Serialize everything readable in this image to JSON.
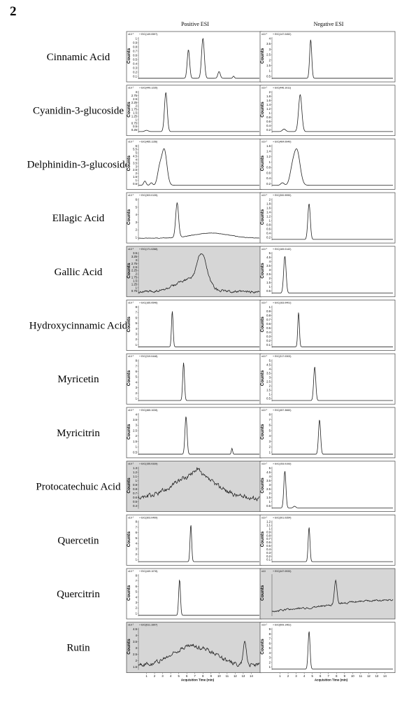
{
  "figure_number": "2",
  "columns": [
    "Positive ESI",
    "Negative ESI"
  ],
  "y_axis_label": "Counts",
  "scale_prefix": "x10",
  "x_axis_label": "Acquisition Time (min)",
  "x_ticks": [
    "1",
    "2",
    "3",
    "4",
    "5",
    "6",
    "7",
    "8",
    "9",
    "10",
    "11",
    "12",
    "13",
    "14"
  ],
  "colors": {
    "panel": "#ffffff",
    "shaded_panel": "#d6d6d6",
    "trace": "#222222"
  },
  "chart_data": [
    {
      "type": "line",
      "compound": "Cinnamic Acid",
      "mode": "Positive ESI",
      "ion": "EIC(149.0597)",
      "shaded": false,
      "yticks": [
        "1",
        "0.9",
        "0.8",
        "0.7",
        "0.6",
        "0.5",
        "0.4",
        "0.3",
        "0.2",
        "0.1"
      ],
      "peaks": [
        {
          "rt": 6.2,
          "h": 0.68,
          "w": 0.15
        },
        {
          "rt": 8.0,
          "h": 0.95,
          "w": 0.17
        },
        {
          "rt": 10.0,
          "h": 0.16,
          "w": 0.15
        },
        {
          "rt": 11.8,
          "h": 0.05,
          "w": 0.1
        }
      ],
      "baseline": 0.02,
      "noise": 0.0
    },
    {
      "type": "line",
      "compound": "Cinnamic Acid",
      "mode": "Negative ESI",
      "ion": "EIC(147.0452)",
      "shaded": false,
      "yticks": [
        "4",
        "3.5",
        "3",
        "2.5",
        "2",
        "1.5",
        "1",
        "0.5"
      ],
      "peaks": [
        {
          "rt": 4.8,
          "h": 0.92,
          "w": 0.13
        }
      ],
      "baseline": 0.02,
      "noise": 0.0
    },
    {
      "type": "line",
      "compound": "Cyanidin-3-glucoside",
      "mode": "Positive ESI",
      "ion": "EIC(449.1235)",
      "shaded": false,
      "yticks": [
        "3",
        "2.75",
        "2.5",
        "2.25",
        "2",
        "1.75",
        "1.5",
        "1.25",
        "1",
        "0.75",
        "0.5",
        "0.25"
      ],
      "peaks": [
        {
          "rt": 3.4,
          "h": 0.93,
          "w": 0.17
        },
        {
          "rt": 1.0,
          "h": 0.03,
          "w": 0.2
        }
      ],
      "baseline": 0.03,
      "noise": 0.0
    },
    {
      "type": "line",
      "compound": "Cyanidin-3-glucoside",
      "mode": "Negative ESI",
      "ion": "EIC(446.1011)",
      "shaded": false,
      "yticks": [
        "2",
        "1.8",
        "1.6",
        "1.4",
        "1.2",
        "1",
        "0.8",
        "0.6",
        "0.4",
        "0.2"
      ],
      "peaks": [
        {
          "rt": 3.5,
          "h": 0.88,
          "w": 0.2
        },
        {
          "rt": 1.5,
          "h": 0.06,
          "w": 0.2
        }
      ],
      "baseline": 0.03,
      "noise": 0.0
    },
    {
      "type": "line",
      "compound": "Delphinidin-3-glucoside",
      "mode": "Positive ESI",
      "ion": "EIC(465.1156)",
      "shaded": false,
      "yticks": [
        "6",
        "5.5",
        "5",
        "4.5",
        "4",
        "3.5",
        "3",
        "2.5",
        "2",
        "1.5",
        "1",
        "0.5"
      ],
      "peaks": [
        {
          "rt": 3.2,
          "h": 0.85,
          "w": 0.32
        },
        {
          "rt": 2.6,
          "h": 0.35,
          "w": 0.25
        },
        {
          "rt": 0.8,
          "h": 0.1,
          "w": 0.15
        },
        {
          "rt": 1.6,
          "h": 0.06,
          "w": 0.15
        }
      ],
      "baseline": 0.03,
      "noise": 0.0
    },
    {
      "type": "line",
      "compound": "Delphinidin-3-glucoside",
      "mode": "Negative ESI",
      "ion": "EIC(464.0940)",
      "shaded": false,
      "yticks": [
        "1.6",
        "1.4",
        "1.2",
        "1",
        "0.8",
        "0.6",
        "0.4",
        "0.2"
      ],
      "peaks": [
        {
          "rt": 3.1,
          "h": 0.82,
          "w": 0.38
        },
        {
          "rt": 2.5,
          "h": 0.3,
          "w": 0.3
        },
        {
          "rt": 1.3,
          "h": 0.06,
          "w": 0.2
        }
      ],
      "baseline": 0.03,
      "noise": 0.0
    },
    {
      "type": "line",
      "compound": "Ellagic Acid",
      "mode": "Positive ESI",
      "ion": "EIC(303.0135)",
      "shaded": false,
      "yticks": [
        "6",
        "5",
        "4",
        "3",
        "2",
        "1"
      ],
      "peaks": [
        {
          "rt": 4.8,
          "h": 0.82,
          "w": 0.18
        },
        {
          "rt": 9.0,
          "h": 0.12,
          "w": 2.2
        }
      ],
      "baseline": 0.05,
      "noise": 0.01
    },
    {
      "type": "line",
      "compound": "Ellagic Acid",
      "mode": "Negative ESI",
      "ion": "EIC(300.9990)",
      "shaded": false,
      "yticks": [
        "2",
        "1.8",
        "1.6",
        "1.4",
        "1.2",
        "1",
        "0.8",
        "0.6",
        "0.4",
        "0.2"
      ],
      "peaks": [
        {
          "rt": 4.6,
          "h": 0.85,
          "w": 0.15
        }
      ],
      "baseline": 0.02,
      "noise": 0.0
    },
    {
      "type": "line",
      "compound": "Gallic Acid",
      "mode": "Positive ESI",
      "ion": "EIC(171.0288)",
      "shaded": true,
      "yticks": [
        "3.5",
        "3.25",
        "3",
        "2.75",
        "2.5",
        "2.25",
        "2",
        "1.75",
        "1.5",
        "1.25",
        "1",
        "0.75"
      ],
      "peaks": [
        {
          "rt": 8.0,
          "h": 0.55,
          "w": 0.6
        },
        {
          "rt": 6.5,
          "h": 0.3,
          "w": 1.8
        },
        {
          "rt": 7.6,
          "h": 0.2,
          "w": 0.4
        }
      ],
      "baseline": 0.05,
      "noise": 0.05
    },
    {
      "type": "line",
      "compound": "Gallic Acid",
      "mode": "Negative ESI",
      "ion": "EIC(169.0142)",
      "shaded": false,
      "yticks": [
        "5",
        "4.5",
        "4",
        "3.5",
        "3",
        "2.5",
        "2",
        "1.5",
        "1",
        "0.5"
      ],
      "peaks": [
        {
          "rt": 1.6,
          "h": 0.88,
          "w": 0.15
        }
      ],
      "baseline": 0.02,
      "noise": 0.0
    },
    {
      "type": "line",
      "compound": "Hydroxycinnamic Acid",
      "mode": "Positive ESI",
      "ion": "EIC(165.0546)",
      "shaded": false,
      "yticks": [
        "8",
        "7",
        "6",
        "5",
        "4",
        "3",
        "2",
        "1"
      ],
      "peaks": [
        {
          "rt": 4.2,
          "h": 0.85,
          "w": 0.1
        }
      ],
      "baseline": 0.02,
      "noise": 0.0
    },
    {
      "type": "line",
      "compound": "Hydroxycinnamic Acid",
      "mode": "Negative ESI",
      "ion": "EIC(163.0401)",
      "shaded": false,
      "yticks": [
        "1",
        "0.9",
        "0.8",
        "0.7",
        "0.6",
        "0.5",
        "0.4",
        "0.3",
        "0.2",
        "0.1"
      ],
      "peaks": [
        {
          "rt": 3.3,
          "h": 0.82,
          "w": 0.1
        }
      ],
      "baseline": 0.02,
      "noise": 0.0
    },
    {
      "type": "line",
      "compound": "Myricetin",
      "mode": "Positive ESI",
      "ion": "EIC(319.0448)",
      "shaded": false,
      "yticks": [
        "8",
        "7",
        "6",
        "5",
        "4",
        "3",
        "2",
        "1"
      ],
      "peaks": [
        {
          "rt": 5.6,
          "h": 0.9,
          "w": 0.11
        }
      ],
      "baseline": 0.02,
      "noise": 0.0
    },
    {
      "type": "line",
      "compound": "Myricetin",
      "mode": "Negative ESI",
      "ion": "EIC(317.0303)",
      "shaded": false,
      "yticks": [
        "5",
        "4.5",
        "4",
        "3.5",
        "3",
        "2.5",
        "2",
        "1.5",
        "1",
        "0.5"
      ],
      "peaks": [
        {
          "rt": 5.3,
          "h": 0.8,
          "w": 0.13
        }
      ],
      "baseline": 0.02,
      "noise": 0.0
    },
    {
      "type": "line",
      "compound": "Myricitrin",
      "mode": "Positive ESI",
      "ion": "EIC(465.1028)",
      "shaded": false,
      "yticks": [
        "4",
        "3.5",
        "3",
        "2.5",
        "2",
        "1.5",
        "1",
        "0.5"
      ],
      "peaks": [
        {
          "rt": 5.9,
          "h": 0.9,
          "w": 0.13
        },
        {
          "rt": 11.6,
          "h": 0.14,
          "w": 0.08
        }
      ],
      "baseline": 0.02,
      "noise": 0.0
    },
    {
      "type": "line",
      "compound": "Myricitrin",
      "mode": "Negative ESI",
      "ion": "EIC(457.3660)",
      "shaded": false,
      "yticks": [
        "8",
        "7",
        "6",
        "5",
        "4",
        "3",
        "2",
        "1"
      ],
      "peaks": [
        {
          "rt": 5.9,
          "h": 0.82,
          "w": 0.13
        }
      ],
      "baseline": 0.02,
      "noise": 0.0
    },
    {
      "type": "line",
      "compound": "Protocatechuic Acid",
      "mode": "Positive ESI",
      "ion": "EIC(155.0339)",
      "shaded": true,
      "yticks": [
        "1.3",
        "1.2",
        "1.1",
        "1",
        "0.9",
        "0.8",
        "0.7",
        "0.6",
        "0.5",
        "0.4"
      ],
      "peaks": [
        {
          "rt": 7.0,
          "h": 0.55,
          "w": 2.6
        },
        {
          "rt": 7.3,
          "h": 0.15,
          "w": 0.4
        }
      ],
      "baseline": 0.25,
      "noise": 0.09
    },
    {
      "type": "line",
      "compound": "Protocatechuic Acid",
      "mode": "Negative ESI",
      "ion": "EIC(153.0193)",
      "shaded": false,
      "yticks": [
        "5",
        "4.5",
        "4",
        "3.5",
        "3",
        "2.5",
        "2",
        "1.5",
        "1",
        "0.5"
      ],
      "peaks": [
        {
          "rt": 1.6,
          "h": 0.88,
          "w": 0.13
        },
        {
          "rt": 2.8,
          "h": 0.04,
          "w": 0.15
        }
      ],
      "baseline": 0.02,
      "noise": 0.0
    },
    {
      "type": "line",
      "compound": "Quercetin",
      "mode": "Positive ESI",
      "ion": "EIC(303.0499)",
      "shaded": false,
      "yticks": [
        "8",
        "7",
        "6",
        "5",
        "4",
        "3",
        "2",
        "1"
      ],
      "peaks": [
        {
          "rt": 6.5,
          "h": 0.88,
          "w": 0.1
        }
      ],
      "baseline": 0.02,
      "noise": 0.0
    },
    {
      "type": "line",
      "compound": "Quercetin",
      "mode": "Negative ESI",
      "ion": "EIC(301.0354)",
      "shaded": false,
      "yticks": [
        "1.2",
        "1.1",
        "1",
        "0.9",
        "0.8",
        "0.7",
        "0.6",
        "0.5",
        "0.4",
        "0.3",
        "0.2",
        "0.1"
      ],
      "peaks": [
        {
          "rt": 4.6,
          "h": 0.82,
          "w": 0.11
        }
      ],
      "baseline": 0.02,
      "noise": 0.0
    },
    {
      "type": "line",
      "compound": "Quercitrin",
      "mode": "Positive ESI",
      "ion": "EIC(449.1078)",
      "shaded": false,
      "yticks": [
        "8",
        "7",
        "6",
        "5",
        "4",
        "3",
        "2",
        "1"
      ],
      "peaks": [
        {
          "rt": 5.1,
          "h": 0.85,
          "w": 0.11
        }
      ],
      "baseline": 0.02,
      "noise": 0.0
    },
    {
      "type": "line",
      "compound": "Quercitrin",
      "mode": "Negative ESI",
      "ion": "EIC(447.0933)",
      "shaded": true,
      "yticks": [],
      "peaks": [
        {
          "rt": 7.9,
          "h": 0.58,
          "w": 0.15
        },
        {
          "rt": 10.5,
          "h": 0.05,
          "w": 3.0
        }
      ],
      "baseline": 0.12,
      "noise": 0.04,
      "trend": 0.25
    },
    {
      "type": "line",
      "compound": "Rutin",
      "mode": "Positive ESI",
      "ion": "EIC(611.1607)",
      "shaded": true,
      "yticks": [
        "4.5",
        "4",
        "3.5",
        "3",
        "2.5",
        "2",
        "1.5"
      ],
      "peaks": [
        {
          "rt": 6.5,
          "h": 0.45,
          "w": 2.2
        },
        {
          "rt": 13.2,
          "h": 0.55,
          "w": 0.2
        },
        {
          "rt": 9.5,
          "h": 0.1,
          "w": 1.0
        }
      ],
      "baseline": 0.12,
      "noise": 0.08
    },
    {
      "type": "line",
      "compound": "Rutin",
      "mode": "Negative ESI",
      "ion": "EIC(609.1461)",
      "shaded": false,
      "yticks": [
        "9",
        "8",
        "7",
        "6",
        "5",
        "4",
        "3",
        "2",
        "1"
      ],
      "peaks": [
        {
          "rt": 4.6,
          "h": 0.9,
          "w": 0.12
        }
      ],
      "baseline": 0.02,
      "noise": 0.0
    }
  ]
}
